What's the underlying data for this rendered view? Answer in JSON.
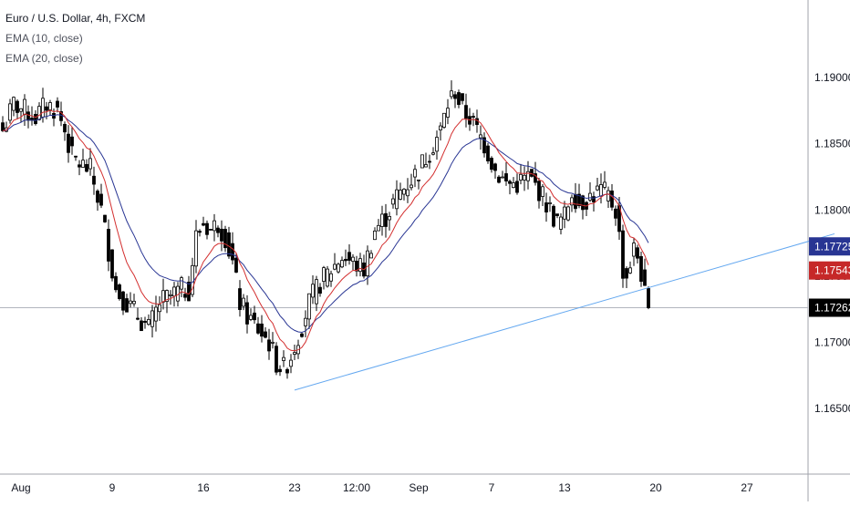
{
  "header": {
    "title": "Euro / U.S. Dollar, 4h, FXCM",
    "ema_fast_label": "EMA (10, close)",
    "ema_slow_label": "EMA (20, close)"
  },
  "colors": {
    "candle": "#000000",
    "ema_fast": "#d32f2f",
    "ema_slow": "#283593",
    "trendline": "#64a8f0",
    "axis_text": "#131722",
    "axis_line": "#a0a3ab",
    "price_line": "#b2b5be",
    "badge_ema_slow": "#283593",
    "badge_ema_fast": "#c62828",
    "badge_last": "#000000"
  },
  "chart_data": {
    "type": "candlestick",
    "title": "Euro / U.S. Dollar, 4h, FXCM",
    "ylim": [
      1.1612,
      1.1962
    ],
    "y_ticks": [
      "1.19000",
      "1.18500",
      "1.18000",
      "1.17500",
      "1.17000",
      "1.16500"
    ],
    "x_ticks": [
      {
        "label": "Aug",
        "bar": 5
      },
      {
        "label": "9",
        "bar": 30
      },
      {
        "label": "16",
        "bar": 55
      },
      {
        "label": "23",
        "bar": 80
      },
      {
        "label": "12:00",
        "bar": 97
      },
      {
        "label": "Sep",
        "bar": 114
      },
      {
        "label": "7",
        "bar": 134
      },
      {
        "label": "13",
        "bar": 154
      },
      {
        "label": "20",
        "bar": 179
      },
      {
        "label": "27",
        "bar": 204
      }
    ],
    "anchors": [
      [
        0,
        1.186
      ],
      [
        3,
        1.188
      ],
      [
        6,
        1.1875
      ],
      [
        9,
        1.187
      ],
      [
        12,
        1.188
      ],
      [
        15,
        1.1875
      ],
      [
        17,
        1.186
      ],
      [
        19,
        1.184
      ],
      [
        21,
        1.1835
      ],
      [
        24,
        1.183
      ],
      [
        27,
        1.18
      ],
      [
        29,
        1.177
      ],
      [
        31,
        1.174
      ],
      [
        34,
        1.173
      ],
      [
        37,
        1.172
      ],
      [
        40,
        1.171
      ],
      [
        43,
        1.173
      ],
      [
        46,
        1.1735
      ],
      [
        49,
        1.174
      ],
      [
        51,
        1.174
      ],
      [
        53,
        1.178
      ],
      [
        55,
        1.179
      ],
      [
        57,
        1.1785
      ],
      [
        59,
        1.179
      ],
      [
        61,
        1.178
      ],
      [
        63,
        1.176
      ],
      [
        65,
        1.173
      ],
      [
        67,
        1.172
      ],
      [
        70,
        1.171
      ],
      [
        73,
        1.17
      ],
      [
        75,
        1.1685
      ],
      [
        77,
        1.168
      ],
      [
        79,
        1.169
      ],
      [
        81,
        1.1705
      ],
      [
        84,
        1.173
      ],
      [
        87,
        1.1745
      ],
      [
        90,
        1.1755
      ],
      [
        93,
        1.1765
      ],
      [
        96,
        1.176
      ],
      [
        99,
        1.1755
      ],
      [
        102,
        1.1785
      ],
      [
        105,
        1.1795
      ],
      [
        108,
        1.181
      ],
      [
        111,
        1.182
      ],
      [
        114,
        1.183
      ],
      [
        117,
        1.1845
      ],
      [
        120,
        1.186
      ],
      [
        122,
        1.188
      ],
      [
        124,
        1.189
      ],
      [
        126,
        1.1875
      ],
      [
        128,
        1.187
      ],
      [
        130,
        1.186
      ],
      [
        132,
        1.185
      ],
      [
        135,
        1.183
      ],
      [
        138,
        1.182
      ],
      [
        141,
        1.182
      ],
      [
        144,
        1.1825
      ],
      [
        147,
        1.1815
      ],
      [
        150,
        1.18
      ],
      [
        152,
        1.179
      ],
      [
        154,
        1.1795
      ],
      [
        156,
        1.1815
      ],
      [
        158,
        1.1805
      ],
      [
        161,
        1.181
      ],
      [
        164,
        1.1815
      ],
      [
        166,
        1.181
      ],
      [
        168,
        1.18
      ],
      [
        169,
        1.178
      ],
      [
        170,
        1.1755
      ],
      [
        171,
        1.175
      ],
      [
        172,
        1.176
      ],
      [
        173,
        1.177
      ],
      [
        174,
        1.1765
      ],
      [
        175,
        1.1752
      ],
      [
        176,
        1.1735
      ],
      [
        177,
        1.1726
      ]
    ],
    "trendline": {
      "start": {
        "bar": 80,
        "price": 1.1664
      },
      "end": {
        "bar": 228,
        "price": 1.1782
      }
    },
    "last_price": 1.17262,
    "price_labels": {
      "ema_slow": "1.17725",
      "ema_fast": "1.17543",
      "last": "1.17262"
    }
  }
}
